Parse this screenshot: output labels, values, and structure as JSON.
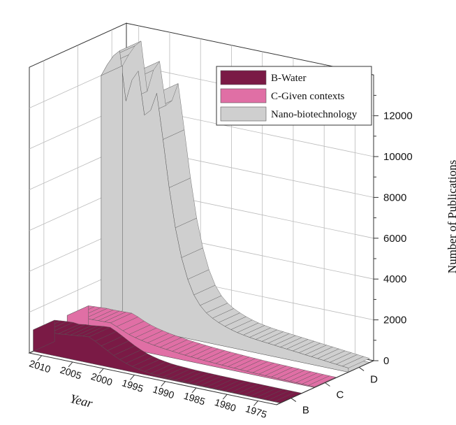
{
  "chart_data": {
    "type": "area",
    "subtype": "3d-ribbon-waterfall",
    "title": "",
    "xlabel": "Year",
    "ylabel": "",
    "zlabel": "Number of Publications",
    "x_ticks": [
      "2010",
      "2005",
      "2000",
      "1995",
      "1990",
      "1985",
      "1980",
      "1975"
    ],
    "y_ticks": [
      "B",
      "C",
      "D"
    ],
    "z_ticks": [
      "0",
      "2000",
      "4000",
      "6000",
      "8000",
      "10000",
      "12000"
    ],
    "zlim": [
      0,
      14000
    ],
    "xlim": [
      1972,
      2012
    ],
    "grid": true,
    "legend_position": "top-right",
    "colors": {
      "B": "#7a1a45",
      "C": "#e06fa5",
      "D": "#cfcfcf",
      "outline": "#555555",
      "frame": "#333333",
      "grid": "#bbbbbb"
    },
    "series": [
      {
        "name": "B-Water",
        "lane": "B",
        "x": [
          2012,
          2011,
          2010,
          2009,
          2008,
          2007,
          2006,
          2005,
          2004,
          2003,
          2002,
          2001,
          2000,
          1999,
          1998,
          1997,
          1996,
          1995,
          1994,
          1993,
          1992,
          1991,
          1990,
          1989,
          1988,
          1987,
          1986,
          1985,
          1984,
          1983,
          1982,
          1981,
          1980,
          1979,
          1978,
          1977,
          1976,
          1975,
          1974,
          1973,
          1972
        ],
        "values": [
          1050,
          1080,
          1110,
          1130,
          1100,
          1150,
          1170,
          1210,
          1250,
          1270,
          1130,
          960,
          790,
          620,
          480,
          360,
          270,
          200,
          150,
          110,
          85,
          70,
          55,
          45,
          38,
          32,
          27,
          23,
          20,
          18,
          16,
          14,
          12,
          11,
          10,
          9,
          8,
          7,
          6,
          6,
          5
        ]
      },
      {
        "name": "C-Given contexts",
        "lane": "C",
        "x": [
          2012,
          2011,
          2010,
          2009,
          2008,
          2007,
          2006,
          2005,
          2004,
          2003,
          2002,
          2001,
          2000,
          1999,
          1998,
          1997,
          1996,
          1995,
          1994,
          1993,
          1992,
          1991,
          1990,
          1989,
          1988,
          1987,
          1986,
          1985,
          1984,
          1983,
          1982,
          1981,
          1980,
          1979,
          1978,
          1977,
          1976,
          1975,
          1974,
          1973,
          1972
        ],
        "values": [
          1000,
          1020,
          1040,
          1060,
          1050,
          1060,
          1070,
          1080,
          960,
          820,
          700,
          610,
          540,
          480,
          430,
          390,
          350,
          320,
          290,
          260,
          240,
          220,
          200,
          185,
          170,
          155,
          140,
          128,
          116,
          105,
          96,
          88,
          80,
          73,
          66,
          60,
          55,
          50,
          45,
          40,
          36
        ]
      },
      {
        "name": "Nano-biotechnology",
        "lane": "D",
        "x": [
          2012,
          2011,
          2010,
          2009,
          2008,
          2007,
          2006,
          2005,
          2004,
          2003,
          2002,
          2001,
          2000,
          1999,
          1998,
          1997,
          1996,
          1995,
          1994,
          1993,
          1992,
          1991,
          1990,
          1989,
          1988,
          1987,
          1986,
          1985,
          1984,
          1983,
          1982,
          1981,
          1980,
          1979,
          1978,
          1977,
          1976,
          1975,
          1974,
          1973,
          1972
        ],
        "values": [
          12000,
          12600,
          13100,
          13400,
          11000,
          12100,
          12600,
          10500,
          10800,
          11700,
          9500,
          7200,
          5300,
          3900,
          2900,
          2200,
          1750,
          1450,
          1250,
          1100,
          980,
          880,
          800,
          740,
          690,
          650,
          620,
          590,
          560,
          530,
          500,
          470,
          440,
          410,
          380,
          350,
          320,
          290,
          260,
          230,
          200
        ]
      }
    ]
  }
}
